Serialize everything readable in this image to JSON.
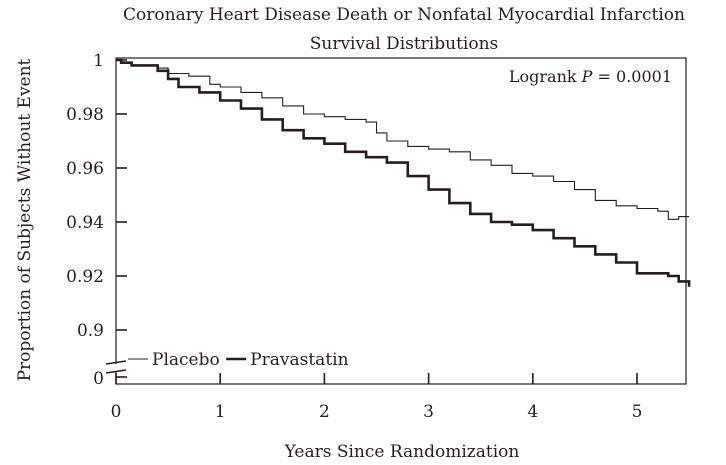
{
  "chart_data": {
    "type": "line",
    "title": "Coronary Heart Disease Death or Nonfatal Myocardial Infarction",
    "subtitle": "Survival Distributions",
    "xlabel": "Years Since Randomization",
    "ylabel": "Proportion of Subjects Without Event",
    "xlim": [
      0,
      5.5
    ],
    "ylim": [
      0.89,
      1.0
    ],
    "y_axis_break": true,
    "y_break_label": "0",
    "x_ticks": [
      0,
      1,
      2,
      3,
      4,
      5
    ],
    "x_tick_labels": [
      "0",
      "1",
      "2",
      "3",
      "4",
      "5"
    ],
    "y_ticks": [
      0.9,
      0.92,
      0.94,
      0.96,
      0.98,
      1.0
    ],
    "y_tick_labels": [
      "0.9",
      "0.92",
      "0.94",
      "0.96",
      "0.98",
      "1"
    ],
    "annotation": {
      "prefix": "Logrank ",
      "italic": "P",
      "suffix": " = 0.0001"
    },
    "legend_position": "bottom-left",
    "series": [
      {
        "name": "Placebo",
        "style": "thin",
        "x": [
          0,
          0.05,
          0.15,
          0.3,
          0.4,
          0.5,
          0.7,
          0.9,
          1.0,
          1.2,
          1.4,
          1.6,
          1.8,
          2.0,
          2.2,
          2.4,
          2.5,
          2.6,
          2.8,
          3.0,
          3.2,
          3.4,
          3.6,
          3.8,
          4.0,
          4.2,
          4.4,
          4.6,
          4.8,
          5.0,
          5.2,
          5.3,
          5.4,
          5.5
        ],
        "y": [
          1.0,
          0.999,
          0.998,
          0.998,
          0.997,
          0.995,
          0.994,
          0.991,
          0.99,
          0.988,
          0.986,
          0.983,
          0.98,
          0.979,
          0.978,
          0.977,
          0.973,
          0.97,
          0.968,
          0.967,
          0.966,
          0.963,
          0.961,
          0.958,
          0.957,
          0.955,
          0.952,
          0.948,
          0.946,
          0.945,
          0.944,
          0.941,
          0.942,
          0.942
        ]
      },
      {
        "name": "Pravastatin",
        "style": "thick",
        "x": [
          0,
          0.05,
          0.15,
          0.3,
          0.4,
          0.5,
          0.6,
          0.8,
          1.0,
          1.2,
          1.4,
          1.6,
          1.8,
          2.0,
          2.2,
          2.4,
          2.6,
          2.8,
          3.0,
          3.2,
          3.4,
          3.6,
          3.8,
          4.0,
          4.2,
          4.4,
          4.6,
          4.8,
          5.0,
          5.2,
          5.3,
          5.4,
          5.5
        ],
        "y": [
          1.0,
          0.999,
          0.998,
          0.998,
          0.996,
          0.993,
          0.99,
          0.988,
          0.985,
          0.982,
          0.978,
          0.974,
          0.971,
          0.969,
          0.966,
          0.964,
          0.962,
          0.957,
          0.952,
          0.947,
          0.943,
          0.94,
          0.939,
          0.937,
          0.934,
          0.931,
          0.928,
          0.925,
          0.921,
          0.921,
          0.92,
          0.918,
          0.916
        ]
      }
    ]
  }
}
